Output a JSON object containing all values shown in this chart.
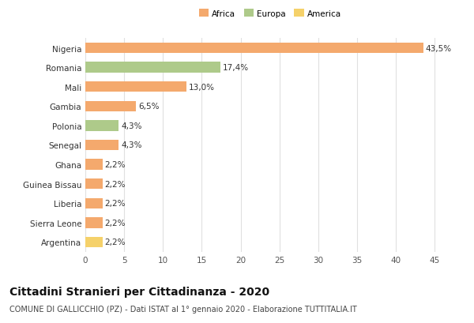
{
  "countries": [
    "Nigeria",
    "Romania",
    "Mali",
    "Gambia",
    "Polonia",
    "Senegal",
    "Ghana",
    "Guinea Bissau",
    "Liberia",
    "Sierra Leone",
    "Argentina"
  ],
  "values": [
    43.5,
    17.4,
    13.0,
    6.5,
    4.3,
    4.3,
    2.2,
    2.2,
    2.2,
    2.2,
    2.2
  ],
  "labels": [
    "43,5%",
    "17,4%",
    "13,0%",
    "6,5%",
    "4,3%",
    "4,3%",
    "2,2%",
    "2,2%",
    "2,2%",
    "2,2%",
    "2,2%"
  ],
  "continents": [
    "Africa",
    "Europa",
    "Africa",
    "Africa",
    "Europa",
    "Africa",
    "Africa",
    "Africa",
    "Africa",
    "Africa",
    "America"
  ],
  "colors": {
    "Africa": "#F4A96D",
    "Europa": "#AECA8A",
    "America": "#F5D16A"
  },
  "legend_labels": [
    "Africa",
    "Europa",
    "America"
  ],
  "legend_colors": [
    "#F4A96D",
    "#AECA8A",
    "#F5D16A"
  ],
  "xlim": [
    0,
    47
  ],
  "xticks": [
    0,
    5,
    10,
    15,
    20,
    25,
    30,
    35,
    40,
    45
  ],
  "title": "Cittadini Stranieri per Cittadinanza - 2020",
  "subtitle": "COMUNE DI GALLICCHIO (PZ) - Dati ISTAT al 1° gennaio 2020 - Elaborazione TUTTITALIA.IT",
  "bg_color": "#ffffff",
  "grid_color": "#e0e0e0",
  "bar_height": 0.55,
  "label_fontsize": 7.5,
  "ytick_fontsize": 7.5,
  "xtick_fontsize": 7.5,
  "title_fontsize": 10,
  "subtitle_fontsize": 7
}
